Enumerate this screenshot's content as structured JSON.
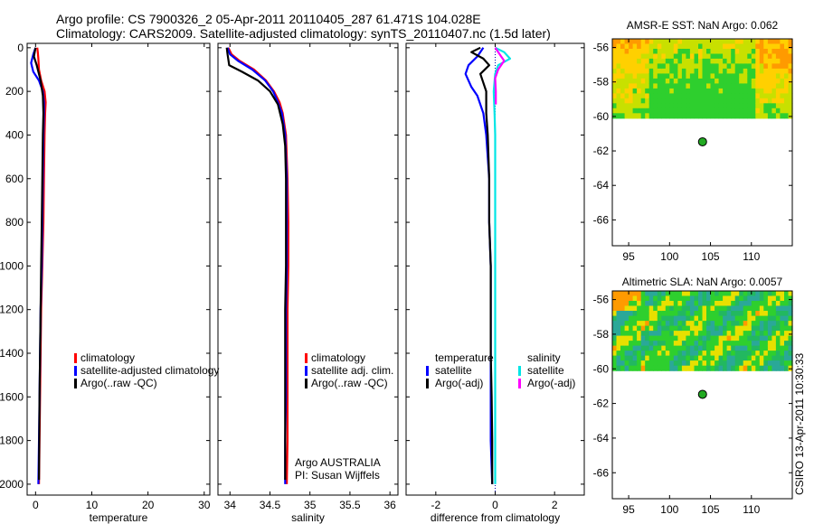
{
  "figure": {
    "title_line1": "Argo profile: CS 7900326_2 05-Apr-2011 20110405_287 61.471S 104.028E",
    "title_line2": "Climatology: CARS2009. Satellite-adjusted climatology: synTS_20110407.nc (1.5d later)",
    "credit": "CSIRO 13-Apr-2011 10:30:33"
  },
  "colors": {
    "climatology": "#ff0000",
    "satellite": "#0000ff",
    "argo": "#000000",
    "sal_satellite": "#00e5e5",
    "sal_argo": "#ff00ff",
    "marker": "#22aa22"
  },
  "chart_data": [
    {
      "type": "line",
      "name": "temperature-profile",
      "xlabel": "temperature",
      "ylabel": "",
      "xlim": [
        -1.5,
        31
      ],
      "ylim": [
        2050,
        -20
      ],
      "xticks": [
        0,
        10,
        20,
        30
      ],
      "yticks": [
        0,
        200,
        400,
        600,
        800,
        1000,
        1200,
        1400,
        1600,
        1800,
        2000
      ],
      "legend": [
        "climatology",
        "satellite-adjusted climatology",
        "Argo(..raw -QC)"
      ],
      "series": [
        {
          "name": "climatology",
          "color_key": "climatology",
          "x": [
            0.3,
            0.4,
            0.5,
            0.6,
            1.0,
            1.6,
            1.8,
            1.7,
            1.6,
            1.5,
            1.4,
            1.2,
            1.0,
            0.9,
            0.8,
            0.7,
            0.6
          ],
          "y": [
            0,
            20,
            50,
            100,
            150,
            200,
            250,
            300,
            400,
            600,
            800,
            1000,
            1200,
            1400,
            1600,
            1800,
            2000
          ]
        },
        {
          "name": "satellite-adjusted climatology",
          "color_key": "satellite",
          "x": [
            0.0,
            -0.4,
            -0.8,
            -0.4,
            0.6,
            1.3,
            1.5,
            1.5,
            1.4,
            1.3,
            1.2,
            1.1,
            0.9,
            0.8,
            0.7,
            0.6,
            0.5
          ],
          "y": [
            0,
            30,
            70,
            110,
            150,
            200,
            250,
            300,
            400,
            600,
            800,
            1000,
            1200,
            1400,
            1600,
            1800,
            2000
          ]
        },
        {
          "name": "Argo(..raw -QC)",
          "color_key": "argo",
          "x": [
            0.0,
            -0.3,
            0.2,
            0.9,
            1.3,
            1.4,
            1.3,
            1.2,
            1.1,
            1.0,
            0.9,
            0.8,
            0.7,
            0.6
          ],
          "y": [
            0,
            40,
            80,
            150,
            220,
            300,
            400,
            600,
            800,
            1000,
            1200,
            1400,
            1600,
            1980
          ]
        }
      ]
    },
    {
      "type": "line",
      "name": "salinity-profile",
      "xlabel": "salinity",
      "ylabel": "",
      "xlim": [
        33.85,
        36.1
      ],
      "ylim": [
        2050,
        -20
      ],
      "xticks": [
        34,
        34.5,
        35,
        35.5,
        36
      ],
      "yticks": [
        0,
        200,
        400,
        600,
        800,
        1000,
        1200,
        1400,
        1600,
        1800,
        2000
      ],
      "legend": [
        "climatology",
        "satellite adj. clim.",
        "Argo(..raw -QC)"
      ],
      "annotation": [
        "Argo AUSTRALIA",
        "PI: Susan Wijffels"
      ],
      "series": [
        {
          "name": "climatology",
          "color_key": "climatology",
          "x": [
            33.98,
            34.02,
            34.12,
            34.3,
            34.45,
            34.55,
            34.62,
            34.66,
            34.7,
            34.72,
            34.73,
            34.73,
            34.72,
            34.72,
            34.72,
            34.72,
            34.71
          ],
          "y": [
            0,
            30,
            60,
            100,
            150,
            200,
            250,
            300,
            400,
            600,
            800,
            1000,
            1200,
            1400,
            1600,
            1800,
            2000
          ]
        },
        {
          "name": "satellite adj. clim.",
          "color_key": "satellite",
          "x": [
            33.97,
            34.0,
            34.1,
            34.28,
            34.44,
            34.54,
            34.6,
            34.65,
            34.69,
            34.71,
            34.71,
            34.71,
            34.7,
            34.7,
            34.7,
            34.69,
            34.69
          ],
          "y": [
            0,
            30,
            60,
            100,
            150,
            200,
            250,
            300,
            400,
            600,
            800,
            1000,
            1200,
            1400,
            1600,
            1800,
            2000
          ]
        },
        {
          "name": "Argo(..raw -QC)",
          "color_key": "argo",
          "x": [
            33.96,
            33.97,
            33.99,
            34.15,
            34.35,
            34.5,
            34.6,
            34.66,
            34.69,
            34.7,
            34.7,
            34.7,
            34.69,
            34.69,
            34.69,
            34.69
          ],
          "y": [
            0,
            30,
            80,
            110,
            150,
            200,
            260,
            350,
            450,
            600,
            800,
            1000,
            1200,
            1400,
            1600,
            1980
          ]
        }
      ]
    },
    {
      "type": "line",
      "name": "difference-profile",
      "xlabel": "difference from climatology",
      "ylabel": "",
      "xlim": [
        -3,
        3
      ],
      "ylim": [
        2050,
        -20
      ],
      "xticks": [
        -2,
        0,
        2
      ],
      "yticks": [
        0,
        200,
        400,
        600,
        800,
        1000,
        1200,
        1400,
        1600,
        1800,
        2000
      ],
      "legend_groups": [
        {
          "title": "temperature",
          "items": [
            "satellite",
            "Argo(-adj)"
          ]
        },
        {
          "title": "salinity",
          "items": [
            "satellite",
            "Argo(-adj)"
          ]
        }
      ],
      "series": [
        {
          "name": "temperature satellite",
          "color_key": "satellite",
          "x": [
            -0.4,
            -0.6,
            -0.9,
            -1.0,
            -0.8,
            -0.6,
            -0.4,
            -0.3,
            -0.2,
            -0.2,
            -0.15,
            -0.15,
            -0.15,
            -0.15,
            -0.15,
            -0.1
          ],
          "y": [
            0,
            40,
            80,
            120,
            180,
            220,
            300,
            400,
            600,
            800,
            1000,
            1200,
            1400,
            1600,
            1800,
            2000
          ]
        },
        {
          "name": "temperature Argo(-adj)",
          "color_key": "argo",
          "x": [
            -0.5,
            -0.8,
            -0.4,
            -0.2,
            -0.5,
            -0.3,
            -0.3,
            -0.25,
            -0.2,
            -0.2,
            -0.15,
            -0.15,
            -0.15,
            -0.12,
            -0.1,
            -0.1
          ],
          "y": [
            0,
            20,
            50,
            80,
            120,
            200,
            300,
            400,
            600,
            800,
            1000,
            1200,
            1400,
            1600,
            1800,
            2000
          ]
        },
        {
          "name": "salinity satellite",
          "color_key": "sal_satellite",
          "x": [
            0.0,
            0.3,
            0.5,
            0.1,
            0.0,
            -0.05,
            -0.02,
            0.0,
            0.0,
            0.0,
            0.0,
            0.0,
            0.0,
            0.0
          ],
          "y": [
            0,
            20,
            50,
            80,
            120,
            200,
            300,
            400,
            600,
            800,
            1000,
            1400,
            1800,
            2000
          ]
        },
        {
          "name": "salinity Argo(-adj)",
          "color_key": "sal_argo",
          "x": [
            0.0,
            0.2,
            0.3,
            0.1,
            0.0,
            0.02,
            0.02
          ],
          "y": [
            0,
            40,
            60,
            100,
            140,
            200,
            260
          ]
        }
      ]
    },
    {
      "type": "heatmap",
      "name": "amsre-sst-map",
      "title": "AMSR-E SST: NaN Argo: 0.062",
      "xlim": [
        93,
        115
      ],
      "ylim": [
        -67.5,
        -55.5
      ],
      "xticks": [
        95,
        100,
        105,
        110
      ],
      "yticks": [
        -56,
        -58,
        -60,
        -62,
        -64,
        -66
      ],
      "data_lat_range": [
        -60.1,
        -55.5
      ],
      "marker": {
        "lon": 104.028,
        "lat": -61.471
      }
    },
    {
      "type": "heatmap",
      "name": "altimetric-sla-map",
      "title": "Altimetric SLA: NaN Argo: 0.0057",
      "xlim": [
        93,
        115
      ],
      "ylim": [
        -67.5,
        -55.5
      ],
      "xticks": [
        95,
        100,
        105,
        110
      ],
      "yticks": [
        -56,
        -58,
        -60,
        -62,
        -64,
        -66
      ],
      "data_lat_range": [
        -60.1,
        -55.5
      ],
      "marker": {
        "lon": 104.028,
        "lat": -61.471
      }
    }
  ]
}
